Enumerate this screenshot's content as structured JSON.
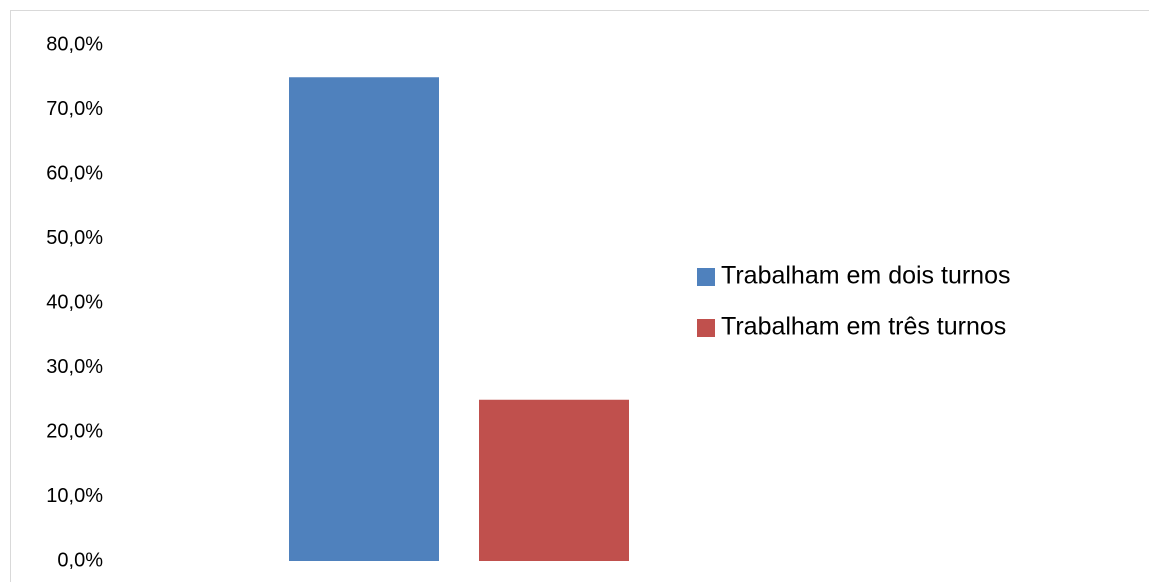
{
  "chart_data": {
    "type": "bar",
    "categories": [
      null
    ],
    "series": [
      {
        "name": "Trabalham em dois turnos",
        "color": "#4f81bd",
        "values": [
          75
        ]
      },
      {
        "name": "Trabalham em três turnos",
        "color": "#c0504d",
        "values": [
          25
        ]
      }
    ],
    "ylim": [
      0,
      80
    ],
    "yticks": [
      {
        "value": 0,
        "label": "0,0%"
      },
      {
        "value": 10,
        "label": "10,0%"
      },
      {
        "value": 20,
        "label": "20,0%"
      },
      {
        "value": 30,
        "label": "30,0%"
      },
      {
        "value": 40,
        "label": "40,0%"
      },
      {
        "value": 50,
        "label": "50,0%"
      },
      {
        "value": 60,
        "label": "60,0%"
      },
      {
        "value": 70,
        "label": "70,0%"
      },
      {
        "value": 80,
        "label": "80,0%"
      }
    ],
    "grid": false,
    "legend": "right"
  }
}
